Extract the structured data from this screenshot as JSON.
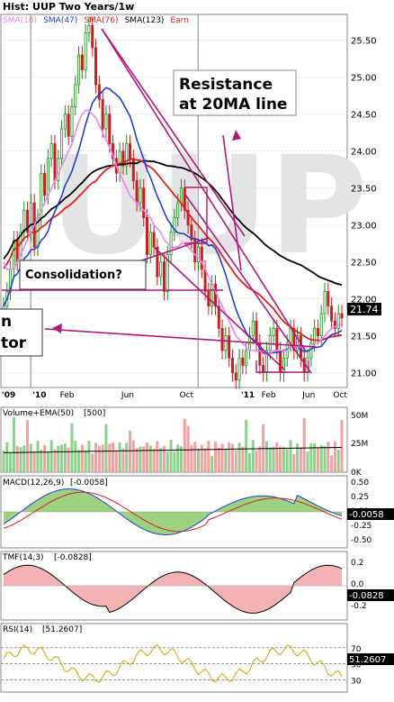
{
  "colors": {
    "up": "#1a8f1a",
    "down": "#c81e1e",
    "sma18": "#ee82ee",
    "sma47": "#1f3fd6",
    "sma76": "#e02020",
    "sma123": "#000000",
    "annot": "#b0187a",
    "fill_green": "#6fbf4a",
    "fill_pink": "#f0a0a0",
    "grid": "#cfcfcf",
    "frame": "#888888"
  },
  "main": {
    "title": "Hist: UUP Two Years/1w",
    "legend": [
      {
        "label": "SMA(18)",
        "color": "#ee82ee"
      },
      {
        "label": "SMA(47)",
        "color": "#1f3fd6"
      },
      {
        "label": "SMA(76)",
        "color": "#e02020"
      },
      {
        "label": "SMA(123)",
        "color": "#000000"
      },
      {
        "label": "Earn",
        "color": "#e02020"
      }
    ],
    "watermark": "UUP",
    "y_ticks": [
      "25.50",
      "25.00",
      "24.50",
      "24.00",
      "23.50",
      "23.00",
      "22.50",
      "22.00",
      "21.50",
      "21.00"
    ],
    "last_price": "21.74",
    "x_labels": [
      "'09",
      "'10",
      "Feb",
      "Jun",
      "Oct",
      "'11",
      "Feb",
      "Jun",
      "Oct"
    ],
    "annotations": {
      "resistance_line1": "Resistance",
      "resistance_line2": "at 20MA line",
      "consolidation": "Consolidation?",
      "partial_line1": "n",
      "partial_line2": "tor"
    }
  },
  "volume": {
    "label": "Volume+EMA(50)",
    "value_label": "[500]",
    "y_ticks": [
      "50M",
      "25M",
      "0K"
    ]
  },
  "macd": {
    "label": "MACD(12,26,9)",
    "value_label": "[-0.0058]",
    "y_ticks": [
      "0.50",
      "0.25",
      "0.00",
      "-0.25",
      "-0.50"
    ],
    "last_value": "-0.0058"
  },
  "tmf": {
    "label": "TMF(14,3)",
    "value_label": "[-0.0828]",
    "y_ticks": [
      "0.2",
      "0.0",
      "-0.2"
    ],
    "last_value": "-0.0828"
  },
  "rsi": {
    "label": "RSI(14)",
    "value_label": "[51.2607]",
    "y_ticks": [
      "70",
      "50",
      "30"
    ],
    "last_value": "51.2607"
  },
  "chart_data": {
    "type": "candlestick",
    "title": "Hist: UUP Two Years/1w",
    "ylim": [
      20.8,
      25.85
    ],
    "x_index_range": [
      0,
      99
    ],
    "close": [
      21.9,
      22.1,
      22.4,
      22.8,
      22.5,
      22.9,
      23.2,
      22.9,
      23.3,
      22.7,
      23.1,
      23.7,
      23.4,
      23.9,
      24.1,
      23.6,
      23.9,
      24.3,
      24.5,
      24.2,
      24.6,
      24.9,
      25.3,
      25.1,
      25.6,
      25.7,
      25.4,
      24.9,
      24.7,
      24.3,
      24.5,
      24.1,
      23.9,
      23.7,
      24.0,
      23.8,
      24.1,
      23.9,
      23.6,
      23.3,
      23.5,
      23.1,
      22.6,
      22.9,
      22.7,
      22.3,
      22.5,
      22.1,
      22.6,
      22.9,
      23.1,
      23.3,
      23.5,
      23.2,
      23.0,
      22.8,
      22.5,
      22.7,
      22.4,
      22.1,
      21.9,
      22.2,
      21.9,
      21.6,
      21.3,
      21.5,
      21.2,
      21.0,
      20.9,
      21.2,
      21.1,
      21.3,
      21.5,
      21.7,
      21.4,
      21.1,
      21.0,
      21.3,
      21.5,
      21.6,
      21.3,
      21.0,
      21.2,
      21.4,
      21.6,
      21.3,
      21.5,
      21.2,
      21.0,
      21.2,
      21.4,
      21.6,
      21.5,
      21.8,
      22.1,
      21.9,
      21.7,
      21.6,
      21.8,
      21.74
    ],
    "sma18": [
      22.5,
      22.4,
      22.4,
      22.4,
      22.5,
      22.6,
      22.7,
      22.8,
      22.9,
      23.0,
      23.1,
      23.2,
      23.3,
      23.4,
      23.5,
      23.6,
      23.7,
      23.8,
      23.9,
      24.0,
      24.1,
      24.25,
      24.4,
      24.5,
      24.55,
      24.55,
      24.5,
      24.45,
      24.35,
      24.25,
      24.15,
      24.05,
      23.95,
      23.8,
      23.7,
      23.6,
      23.5,
      23.4,
      23.35,
      23.3,
      23.25,
      23.2,
      23.15,
      23.1,
      23.0,
      22.95,
      22.9,
      22.8,
      22.75,
      22.7,
      22.7,
      22.7,
      22.75,
      22.75,
      22.7,
      22.65,
      22.6,
      22.55,
      22.5,
      22.4,
      22.3,
      22.2,
      22.1,
      22.0,
      21.9,
      21.8,
      21.7,
      21.6,
      21.5,
      21.45,
      21.4,
      21.35,
      21.3,
      21.3,
      21.3,
      21.3,
      21.25,
      21.25,
      21.25,
      21.3,
      21.3,
      21.3,
      21.3,
      21.3,
      21.35,
      21.35,
      21.35,
      21.35,
      21.35,
      21.35,
      21.35,
      21.4,
      21.4,
      21.45,
      21.5,
      21.55,
      21.6,
      21.62,
      21.65,
      21.65
    ]
  }
}
